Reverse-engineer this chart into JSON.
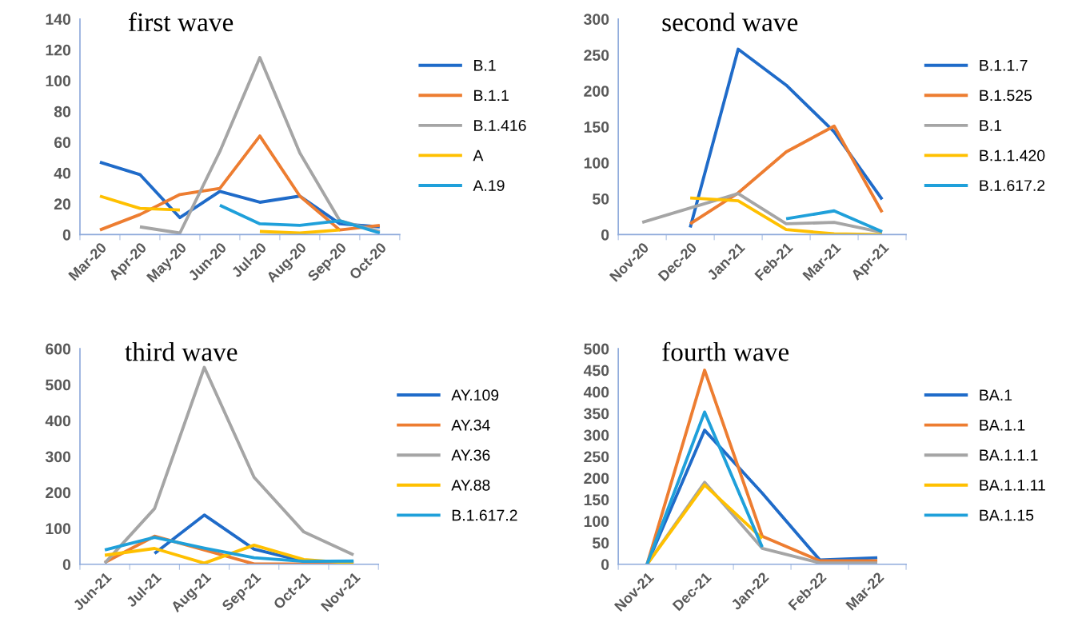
{
  "chart_data": [
    {
      "type": "line",
      "title": "first wave",
      "categories": [
        "Mar-20",
        "Apr-20",
        "May-20",
        "Jun-20",
        "Jul-20",
        "Aug-20",
        "Sep-20",
        "Oct-20"
      ],
      "ylim": [
        0,
        140
      ],
      "yticks": [
        0,
        20,
        40,
        60,
        80,
        100,
        120,
        140
      ],
      "legend": "right",
      "grid": false,
      "series": [
        {
          "name": "B.1",
          "color": "#1f6bc9",
          "values": [
            47,
            39,
            11,
            28,
            21,
            25,
            7,
            5
          ]
        },
        {
          "name": "B.1.1",
          "color": "#ed7d31",
          "values": [
            3,
            13,
            26,
            30,
            64,
            25,
            3,
            6
          ]
        },
        {
          "name": "B.1.416",
          "color": "#a5a5a5",
          "values": [
            null,
            5,
            1,
            54,
            115,
            53,
            9,
            2
          ]
        },
        {
          "name": "A",
          "color": "#ffc000",
          "values": [
            25,
            17,
            16,
            null,
            2,
            1,
            3,
            null
          ]
        },
        {
          "name": "A.19",
          "color": "#1fa0da",
          "values": [
            null,
            null,
            null,
            19,
            7,
            6,
            9,
            1
          ]
        }
      ]
    },
    {
      "type": "line",
      "title": "second wave",
      "categories": [
        "Nov-20",
        "Dec-20",
        "Jan-21",
        "Feb-21",
        "Mar-21",
        "Apr-21"
      ],
      "ylim": [
        0,
        300
      ],
      "yticks": [
        0,
        50,
        100,
        150,
        200,
        250,
        300
      ],
      "legend": "right",
      "grid": false,
      "series": [
        {
          "name": "B.1.1.7",
          "color": "#1f6bc9",
          "values": [
            null,
            10,
            258,
            208,
            143,
            49
          ]
        },
        {
          "name": "B.1.525",
          "color": "#ed7d31",
          "values": [
            null,
            15,
            58,
            115,
            151,
            31
          ]
        },
        {
          "name": "B.1",
          "color": "#a5a5a5",
          "values": [
            17,
            37,
            57,
            15,
            17,
            3
          ]
        },
        {
          "name": "B.1.1.420",
          "color": "#ffc000",
          "values": [
            null,
            51,
            47,
            7,
            1,
            0
          ]
        },
        {
          "name": "B.1.617.2",
          "color": "#1fa0da",
          "values": [
            null,
            null,
            null,
            22,
            33,
            4
          ]
        }
      ]
    },
    {
      "type": "line",
      "title": "third wave",
      "categories": [
        "Jun-21",
        "Jul-21",
        "Aug-21",
        "Sep-21",
        "Oct-21",
        "Nov-21"
      ],
      "ylim": [
        0,
        600
      ],
      "yticks": [
        0,
        100,
        200,
        300,
        400,
        500,
        600
      ],
      "legend": "right",
      "grid": false,
      "series": [
        {
          "name": "AY.109",
          "color": "#1f6bc9",
          "values": [
            null,
            30,
            137,
            42,
            8,
            8
          ]
        },
        {
          "name": "AY.34",
          "color": "#ed7d31",
          "values": [
            5,
            78,
            40,
            1,
            1,
            1
          ]
        },
        {
          "name": "AY.36",
          "color": "#a5a5a5",
          "values": [
            3,
            155,
            548,
            242,
            90,
            26
          ]
        },
        {
          "name": "AY.88",
          "color": "#ffc000",
          "values": [
            25,
            44,
            3,
            53,
            13,
            3
          ]
        },
        {
          "name": "B.1.617.2",
          "color": "#1fa0da",
          "values": [
            40,
            75,
            45,
            18,
            8,
            9
          ]
        }
      ]
    },
    {
      "type": "line",
      "title": "fourth wave",
      "categories": [
        "Nov-21",
        "Dec-21",
        "Jan-22",
        "Feb-22",
        "Mar-22"
      ],
      "ylim": [
        0,
        500
      ],
      "yticks": [
        0,
        50,
        100,
        150,
        200,
        250,
        300,
        350,
        400,
        450,
        500
      ],
      "legend": "right",
      "grid": false,
      "series": [
        {
          "name": "BA.1",
          "color": "#1f6bc9",
          "values": [
            0,
            311,
            165,
            10,
            15
          ]
        },
        {
          "name": "BA.1.1",
          "color": "#ed7d31",
          "values": [
            0,
            450,
            65,
            8,
            8
          ]
        },
        {
          "name": "BA.1.1.1",
          "color": "#a5a5a5",
          "values": [
            0,
            190,
            37,
            3,
            3
          ]
        },
        {
          "name": "BA.1.1.11",
          "color": "#ffc000",
          "values": [
            0,
            184,
            60,
            null,
            null
          ]
        },
        {
          "name": "BA.1.15",
          "color": "#1fa0da",
          "values": [
            0,
            353,
            40,
            null,
            null
          ]
        }
      ]
    }
  ]
}
